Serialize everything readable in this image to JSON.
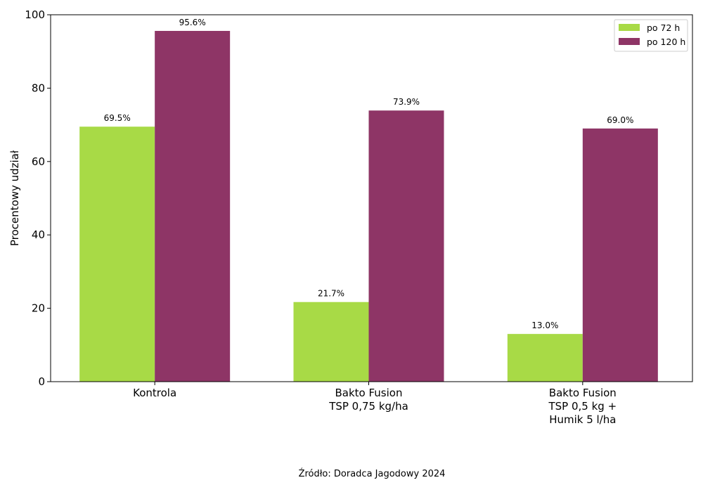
{
  "chart_data": {
    "type": "bar",
    "categories": [
      [
        "Kontrola"
      ],
      [
        "Bakto Fusion",
        "TSP 0,75 kg/ha"
      ],
      [
        "Bakto Fusion",
        "TSP 0,5 kg +",
        "Humik 5 l/ha"
      ]
    ],
    "series": [
      {
        "name": "po 72 h",
        "values": [
          69.5,
          21.7,
          13.0
        ],
        "labels": [
          "69.5%",
          "21.7%",
          "13.0%"
        ],
        "color": "#a8da46"
      },
      {
        "name": "po 120 h",
        "values": [
          95.6,
          73.9,
          69.0
        ],
        "labels": [
          "95.6%",
          "73.9%",
          "69.0%"
        ],
        "color": "#8e3566"
      }
    ],
    "title": "",
    "xlabel": "",
    "ylabel": "Procentowy udział",
    "ylim": [
      0,
      100
    ],
    "yticks": [
      "0",
      "20",
      "40",
      "60",
      "80",
      "100"
    ],
    "grid": false,
    "legend_position": "top-right"
  },
  "source": "Źródło: Doradca Jagodowy 2024"
}
